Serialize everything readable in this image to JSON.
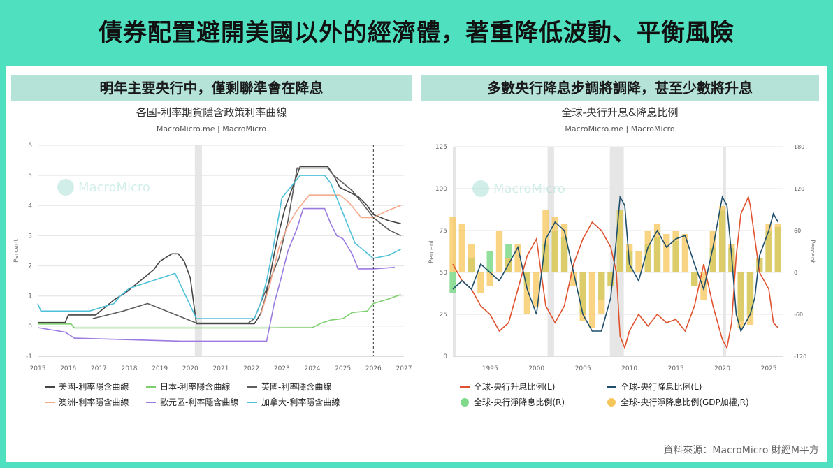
{
  "headline": "債券配置避開美國以外的經濟體，著重降低波動、平衡風險",
  "left_panel_title": "明年主要央行中，僅剩聯準會在降息",
  "right_panel_title": "多數央行降息步調將調降，甚至少數將升息",
  "source_note": "資料來源：MacroMicro 財經M平方",
  "chart_data": [
    {
      "type": "line",
      "title": "各國-利率期貨隱含政策利率曲線",
      "subtitle": "MacroMicro.me | MacroMicro",
      "watermark": "MacroMicro",
      "ylabel": "Percent",
      "ylim": [
        -1,
        6
      ],
      "yticks": [
        -1,
        0,
        1,
        2,
        3,
        4,
        5,
        6
      ],
      "xlim": [
        2015,
        2027
      ],
      "xticks": [
        2015,
        2016,
        2017,
        2018,
        2019,
        2020,
        2021,
        2022,
        2023,
        2024,
        2025,
        2026,
        2027
      ],
      "xtick_labels": [
        "2015",
        "2016",
        "2017",
        "2018",
        "2019",
        "2020",
        "2021",
        "2022",
        "2023",
        "2024",
        "2025",
        "2026",
        "2027"
      ],
      "shaded_ranges": [
        [
          2020.15,
          2020.38
        ]
      ],
      "forecast_marker_x": 2026.0,
      "grid": "horizontal",
      "legend": "bottom",
      "series": [
        {
          "name": "美國-利率隱含曲線",
          "color": "#444444",
          "x": [
            2015,
            2015.9,
            2016.0,
            2016.9,
            2017.2,
            2017.5,
            2017.9,
            2018.2,
            2018.5,
            2018.8,
            2019.0,
            2019.4,
            2019.6,
            2019.8,
            2020.0,
            2020.2,
            2021.0,
            2022.1,
            2022.3,
            2022.45,
            2022.6,
            2022.75,
            2022.9,
            2023.1,
            2023.35,
            2023.6,
            2024.5,
            2024.7,
            2024.9,
            2025.5,
            2025.8,
            2026.0,
            2026.5,
            2026.9
          ],
          "y": [
            0.12,
            0.12,
            0.37,
            0.37,
            0.62,
            0.87,
            1.12,
            1.37,
            1.62,
            1.87,
            2.15,
            2.4,
            2.4,
            2.15,
            1.6,
            0.08,
            0.08,
            0.08,
            0.4,
            0.9,
            1.6,
            2.4,
            3.1,
            3.9,
            4.6,
            5.3,
            5.3,
            5.0,
            4.6,
            4.3,
            4.0,
            3.7,
            3.5,
            3.4
          ]
        },
        {
          "name": "日本-利率隱含曲線",
          "color": "#7fcf6f",
          "x": [
            2015,
            2016.1,
            2016.2,
            2022.5,
            2023,
            2024.0,
            2024.3,
            2024.6,
            2025.0,
            2025.3,
            2025.8,
            2026.0,
            2026.5,
            2026.9
          ],
          "y": [
            0.07,
            0.07,
            -0.06,
            -0.06,
            -0.05,
            -0.05,
            0.1,
            0.2,
            0.25,
            0.45,
            0.5,
            0.75,
            0.9,
            1.05
          ]
        },
        {
          "name": "英國-利率隱含曲線",
          "color": "#5e5e5e",
          "x": [
            2016.8,
            2017.8,
            2018.6,
            2020.2,
            2021.9,
            2022.1,
            2022.4,
            2022.7,
            2022.9,
            2023.2,
            2023.5,
            2024.5,
            2024.7,
            2025.0,
            2025.3,
            2025.7,
            2026.0,
            2026.5,
            2026.9
          ],
          "y": [
            0.25,
            0.5,
            0.75,
            0.1,
            0.1,
            0.25,
            1.0,
            1.75,
            2.25,
            3.5,
            5.25,
            5.25,
            5.0,
            4.75,
            4.5,
            4.0,
            3.6,
            3.2,
            3.0
          ]
        },
        {
          "name": "澳洲-利率隱含曲線",
          "color": "#f4a98a",
          "x": [
            2022.3,
            2022.6,
            2022.9,
            2023.2,
            2023.5,
            2023.9,
            2024.9,
            2025.2,
            2025.6,
            2026.0,
            2026.5,
            2026.9
          ],
          "y": [
            0.35,
            1.35,
            2.6,
            3.35,
            3.85,
            4.35,
            4.35,
            4.1,
            3.6,
            3.6,
            3.85,
            4.0
          ]
        },
        {
          "name": "歐元區-利率隱含曲線",
          "color": "#9b7be0",
          "x": [
            2015,
            2015.9,
            2016.2,
            2019.7,
            2022.5,
            2022.6,
            2022.75,
            2022.95,
            2023.2,
            2023.5,
            2023.7,
            2024.4,
            2024.6,
            2024.8,
            2025.0,
            2025.3,
            2025.5,
            2026.0,
            2026.7
          ],
          "y": [
            -0.05,
            -0.2,
            -0.4,
            -0.5,
            -0.5,
            0.0,
            0.75,
            1.5,
            2.5,
            3.25,
            3.9,
            3.9,
            3.4,
            3.0,
            2.9,
            2.4,
            1.9,
            1.9,
            1.95
          ]
        },
        {
          "name": "加拿大-利率隱含曲線",
          "color": "#4fc1d8",
          "x": [
            2015,
            2015.1,
            2015.5,
            2016.7,
            2017.5,
            2017.7,
            2018.0,
            2019.5,
            2020.2,
            2022.1,
            2022.3,
            2022.5,
            2022.7,
            2023.0,
            2023.4,
            2023.6,
            2024.4,
            2024.6,
            2024.8,
            2025.0,
            2025.2,
            2025.4,
            2026.0,
            2026.5,
            2026.9
          ],
          "y": [
            0.75,
            0.5,
            0.5,
            0.5,
            0.75,
            1.0,
            1.25,
            1.75,
            0.25,
            0.25,
            0.75,
            1.5,
            2.5,
            4.25,
            4.75,
            5.0,
            5.0,
            4.75,
            4.25,
            3.75,
            3.25,
            2.75,
            2.25,
            2.35,
            2.55
          ]
        }
      ]
    },
    {
      "type": "line",
      "title": "全球-央行升息&降息比例",
      "subtitle": "MacroMicro.me | MacroMicro",
      "watermark": "MacroMicro",
      "ylabel": "Percent",
      "ylabel_right": "Percent",
      "ylim": [
        0,
        125
      ],
      "yticks": [
        0,
        25,
        50,
        75,
        100,
        125
      ],
      "y2lim": [
        -120,
        180
      ],
      "y2ticks": [
        -120,
        -60,
        0,
        60,
        120,
        180
      ],
      "xlim": [
        1991,
        2026.5
      ],
      "xticks": [
        1995,
        2000,
        2005,
        2010,
        2015,
        2020,
        2025
      ],
      "xtick_labels": [
        "1995",
        "2000",
        "2005",
        "2010",
        "2015",
        "2020",
        "2025"
      ],
      "shaded_ranges": [
        [
          1990.8,
          1991.3
        ],
        [
          2001.2,
          2001.9
        ],
        [
          2007.9,
          2009.4
        ],
        [
          2020.1,
          2020.4
        ]
      ],
      "grid": "horizontal",
      "legend": "bottom",
      "series": [
        {
          "name": "全球-央行升息比例(L)",
          "axis": "left",
          "color": "#e0522e",
          "x": [
            1991,
            1992,
            1993,
            1994,
            1995,
            1996,
            1997,
            1998,
            1999,
            2000,
            2001,
            2002,
            2003,
            2004,
            2005,
            2006,
            2007,
            2008,
            2008.6,
            2009,
            2009.5,
            2010,
            2011,
            2012,
            2013,
            2014,
            2015,
            2016,
            2017,
            2018,
            2019,
            2020,
            2020.5,
            2021,
            2021.5,
            2022,
            2022.8,
            2023,
            2023.5,
            2024,
            2025,
            2025.5,
            2026
          ],
          "y": [
            55,
            45,
            40,
            30,
            25,
            15,
            20,
            40,
            60,
            70,
            30,
            20,
            30,
            55,
            70,
            80,
            75,
            65,
            50,
            12,
            5,
            15,
            25,
            18,
            25,
            20,
            22,
            15,
            30,
            55,
            30,
            10,
            5,
            20,
            60,
            85,
            95,
            90,
            70,
            50,
            40,
            20,
            17
          ]
        },
        {
          "name": "全球-央行降息比例(L)",
          "axis": "left",
          "color": "#1f4e6b",
          "x": [
            1991,
            1992,
            1993,
            1994,
            1995,
            1996,
            1997,
            1998,
            1999,
            2000,
            2001,
            2002,
            2003,
            2004,
            2005,
            2006,
            2007,
            2008,
            2008.6,
            2009,
            2009.5,
            2010,
            2011,
            2012,
            2013,
            2014,
            2015,
            2016,
            2017,
            2018,
            2019,
            2020,
            2020.5,
            2021,
            2021.5,
            2022,
            2023,
            2023.5,
            2024,
            2025,
            2025.5,
            2026
          ],
          "y": [
            40,
            45,
            40,
            55,
            50,
            45,
            55,
            65,
            40,
            25,
            70,
            80,
            75,
            50,
            25,
            15,
            15,
            35,
            70,
            95,
            90,
            55,
            45,
            65,
            75,
            65,
            70,
            72,
            55,
            40,
            65,
            95,
            90,
            60,
            25,
            15,
            25,
            35,
            60,
            75,
            85,
            80
          ]
        },
        {
          "name": "全球-央行淨降息比例(R)",
          "axis": "right",
          "kind": "bar",
          "color": "#7fd98a",
          "x": [
            1991,
            1993,
            1995,
            1997,
            1999,
            2001,
            2002,
            2003,
            2005,
            2007,
            2008,
            2009,
            2010,
            2012,
            2013,
            2015,
            2017,
            2019,
            2020,
            2021,
            2022,
            2023,
            2024,
            2025,
            2026
          ],
          "y": [
            -30,
            20,
            30,
            40,
            -20,
            40,
            60,
            50,
            -60,
            -40,
            -20,
            90,
            30,
            40,
            50,
            45,
            -20,
            35,
            90,
            35,
            -70,
            -60,
            20,
            60,
            65
          ]
        },
        {
          "name": "全球-央行淨降息比例(GDP加權,R)",
          "axis": "right",
          "kind": "bar",
          "color": "#f5c65a",
          "x": [
            1991,
            1992,
            1993,
            1994,
            1995,
            1996,
            1997,
            1998,
            1999,
            2000,
            2001,
            2002,
            2003,
            2004,
            2005,
            2006,
            2007,
            2008,
            2009,
            2010,
            2011,
            2012,
            2013,
            2014,
            2015,
            2016,
            2017,
            2018,
            2019,
            2020,
            2021,
            2022,
            2023,
            2024,
            2025,
            2026
          ],
          "y": [
            80,
            70,
            40,
            -30,
            -20,
            60,
            20,
            40,
            -60,
            -50,
            90,
            80,
            70,
            -20,
            -70,
            -80,
            -60,
            -20,
            90,
            40,
            30,
            60,
            70,
            55,
            60,
            55,
            -20,
            -40,
            60,
            95,
            40,
            -80,
            -75,
            20,
            70,
            70
          ]
        }
      ]
    }
  ]
}
